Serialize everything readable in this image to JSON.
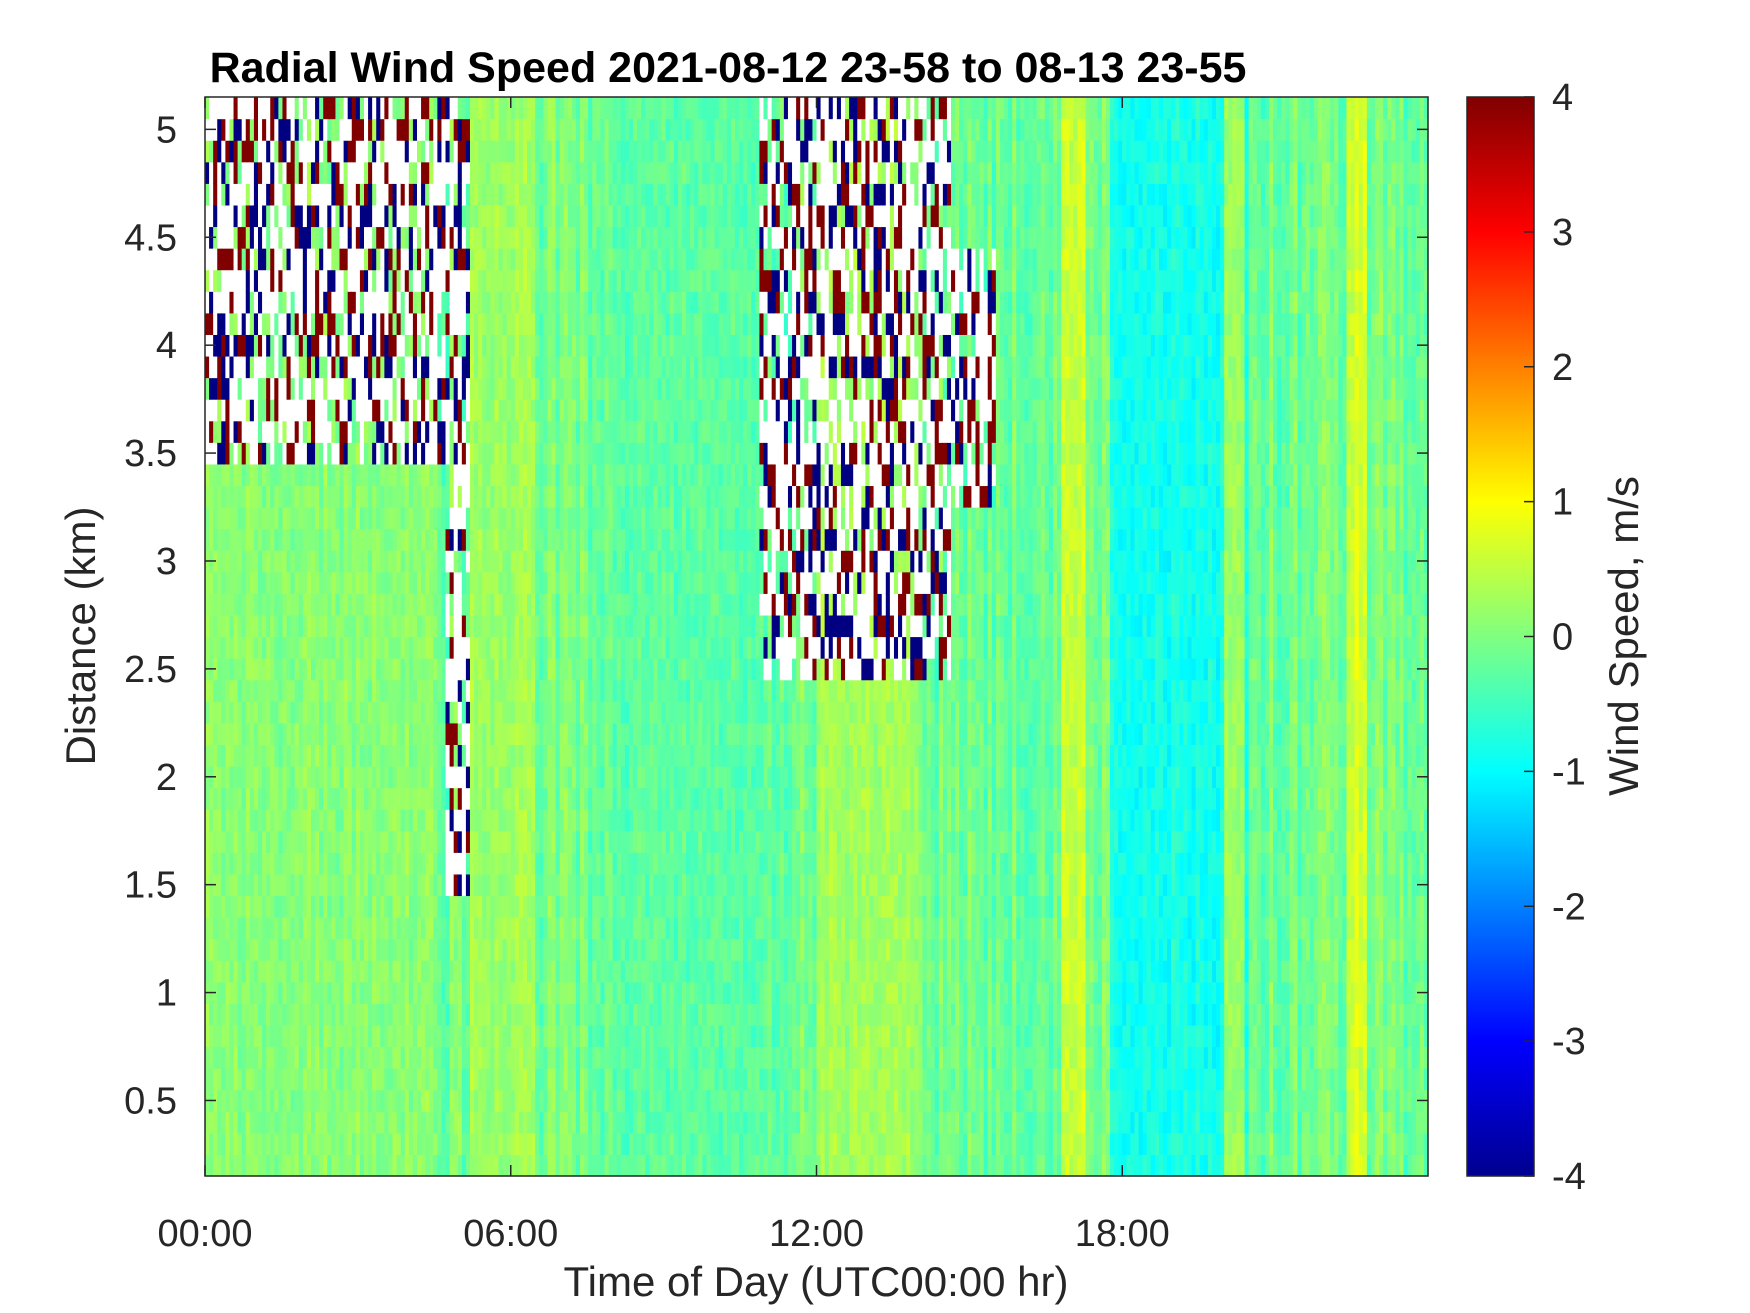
{
  "chart_data": {
    "type": "heatmap",
    "title": "Radial Wind Speed 2021-08-12 23-58 to 08-13 23-55",
    "xlabel": "Time of Day (UTC00:00 hr)",
    "ylabel": "Distance (km)",
    "colorbar_label": "Wind Speed, m/s",
    "colormap": "jet",
    "x_unit": "hours",
    "xlim": [
      0,
      24
    ],
    "ylim": [
      0.15,
      5.15
    ],
    "clim": [
      -4,
      4
    ],
    "x_ticks": [
      {
        "value": 0,
        "label": "00:00"
      },
      {
        "value": 6,
        "label": "06:00"
      },
      {
        "value": 12,
        "label": "12:00"
      },
      {
        "value": 18,
        "label": "18:00"
      }
    ],
    "y_ticks": [
      {
        "value": 0.5,
        "label": "0.5"
      },
      {
        "value": 1,
        "label": "1"
      },
      {
        "value": 1.5,
        "label": "1.5"
      },
      {
        "value": 2,
        "label": "2"
      },
      {
        "value": 2.5,
        "label": "2.5"
      },
      {
        "value": 3,
        "label": "3"
      },
      {
        "value": 3.5,
        "label": "3.5"
      },
      {
        "value": 4,
        "label": "4"
      },
      {
        "value": 4.5,
        "label": "4.5"
      },
      {
        "value": 5,
        "label": "5"
      }
    ],
    "colorbar_ticks": [
      {
        "value": 4,
        "label": "4"
      },
      {
        "value": 3,
        "label": "3"
      },
      {
        "value": 2,
        "label": "2"
      },
      {
        "value": 1,
        "label": "1"
      },
      {
        "value": 0,
        "label": "0"
      },
      {
        "value": -1,
        "label": "-1"
      },
      {
        "value": -2,
        "label": "-2"
      },
      {
        "value": -3,
        "label": "-3"
      },
      {
        "value": -4,
        "label": "-4"
      }
    ],
    "field_summary": {
      "background_speed_range": [
        -0.8,
        0.9
      ],
      "time_bands": [
        {
          "t_start": 0.0,
          "t_end": 4.5,
          "speed": 0.2
        },
        {
          "t_start": 5.2,
          "t_end": 6.5,
          "speed": 0.5
        },
        {
          "t_start": 8.0,
          "t_end": 11.0,
          "speed": -0.4
        },
        {
          "t_start": 12.0,
          "t_end": 14.0,
          "speed": 0.5
        },
        {
          "t_start": 16.8,
          "t_end": 17.3,
          "speed": 1.1
        },
        {
          "t_start": 17.8,
          "t_end": 20.5,
          "speed": -1.3
        },
        {
          "t_start": 20.0,
          "t_end": 20.4,
          "speed": 0.9
        },
        {
          "t_start": 22.4,
          "t_end": 22.8,
          "speed": 1.2
        }
      ],
      "no_data_regions": [
        {
          "t_start": 0.0,
          "t_end": 5.2,
          "d_min": 3.5,
          "d_max": 5.15
        },
        {
          "t_start": 4.7,
          "t_end": 5.2,
          "d_min": 1.5,
          "d_max": 3.5
        },
        {
          "t_start": 10.9,
          "t_end": 14.6,
          "d_min": 2.5,
          "d_max": 5.15
        },
        {
          "t_start": 14.0,
          "t_end": 15.5,
          "d_min": 3.3,
          "d_max": 4.4
        }
      ]
    }
  }
}
